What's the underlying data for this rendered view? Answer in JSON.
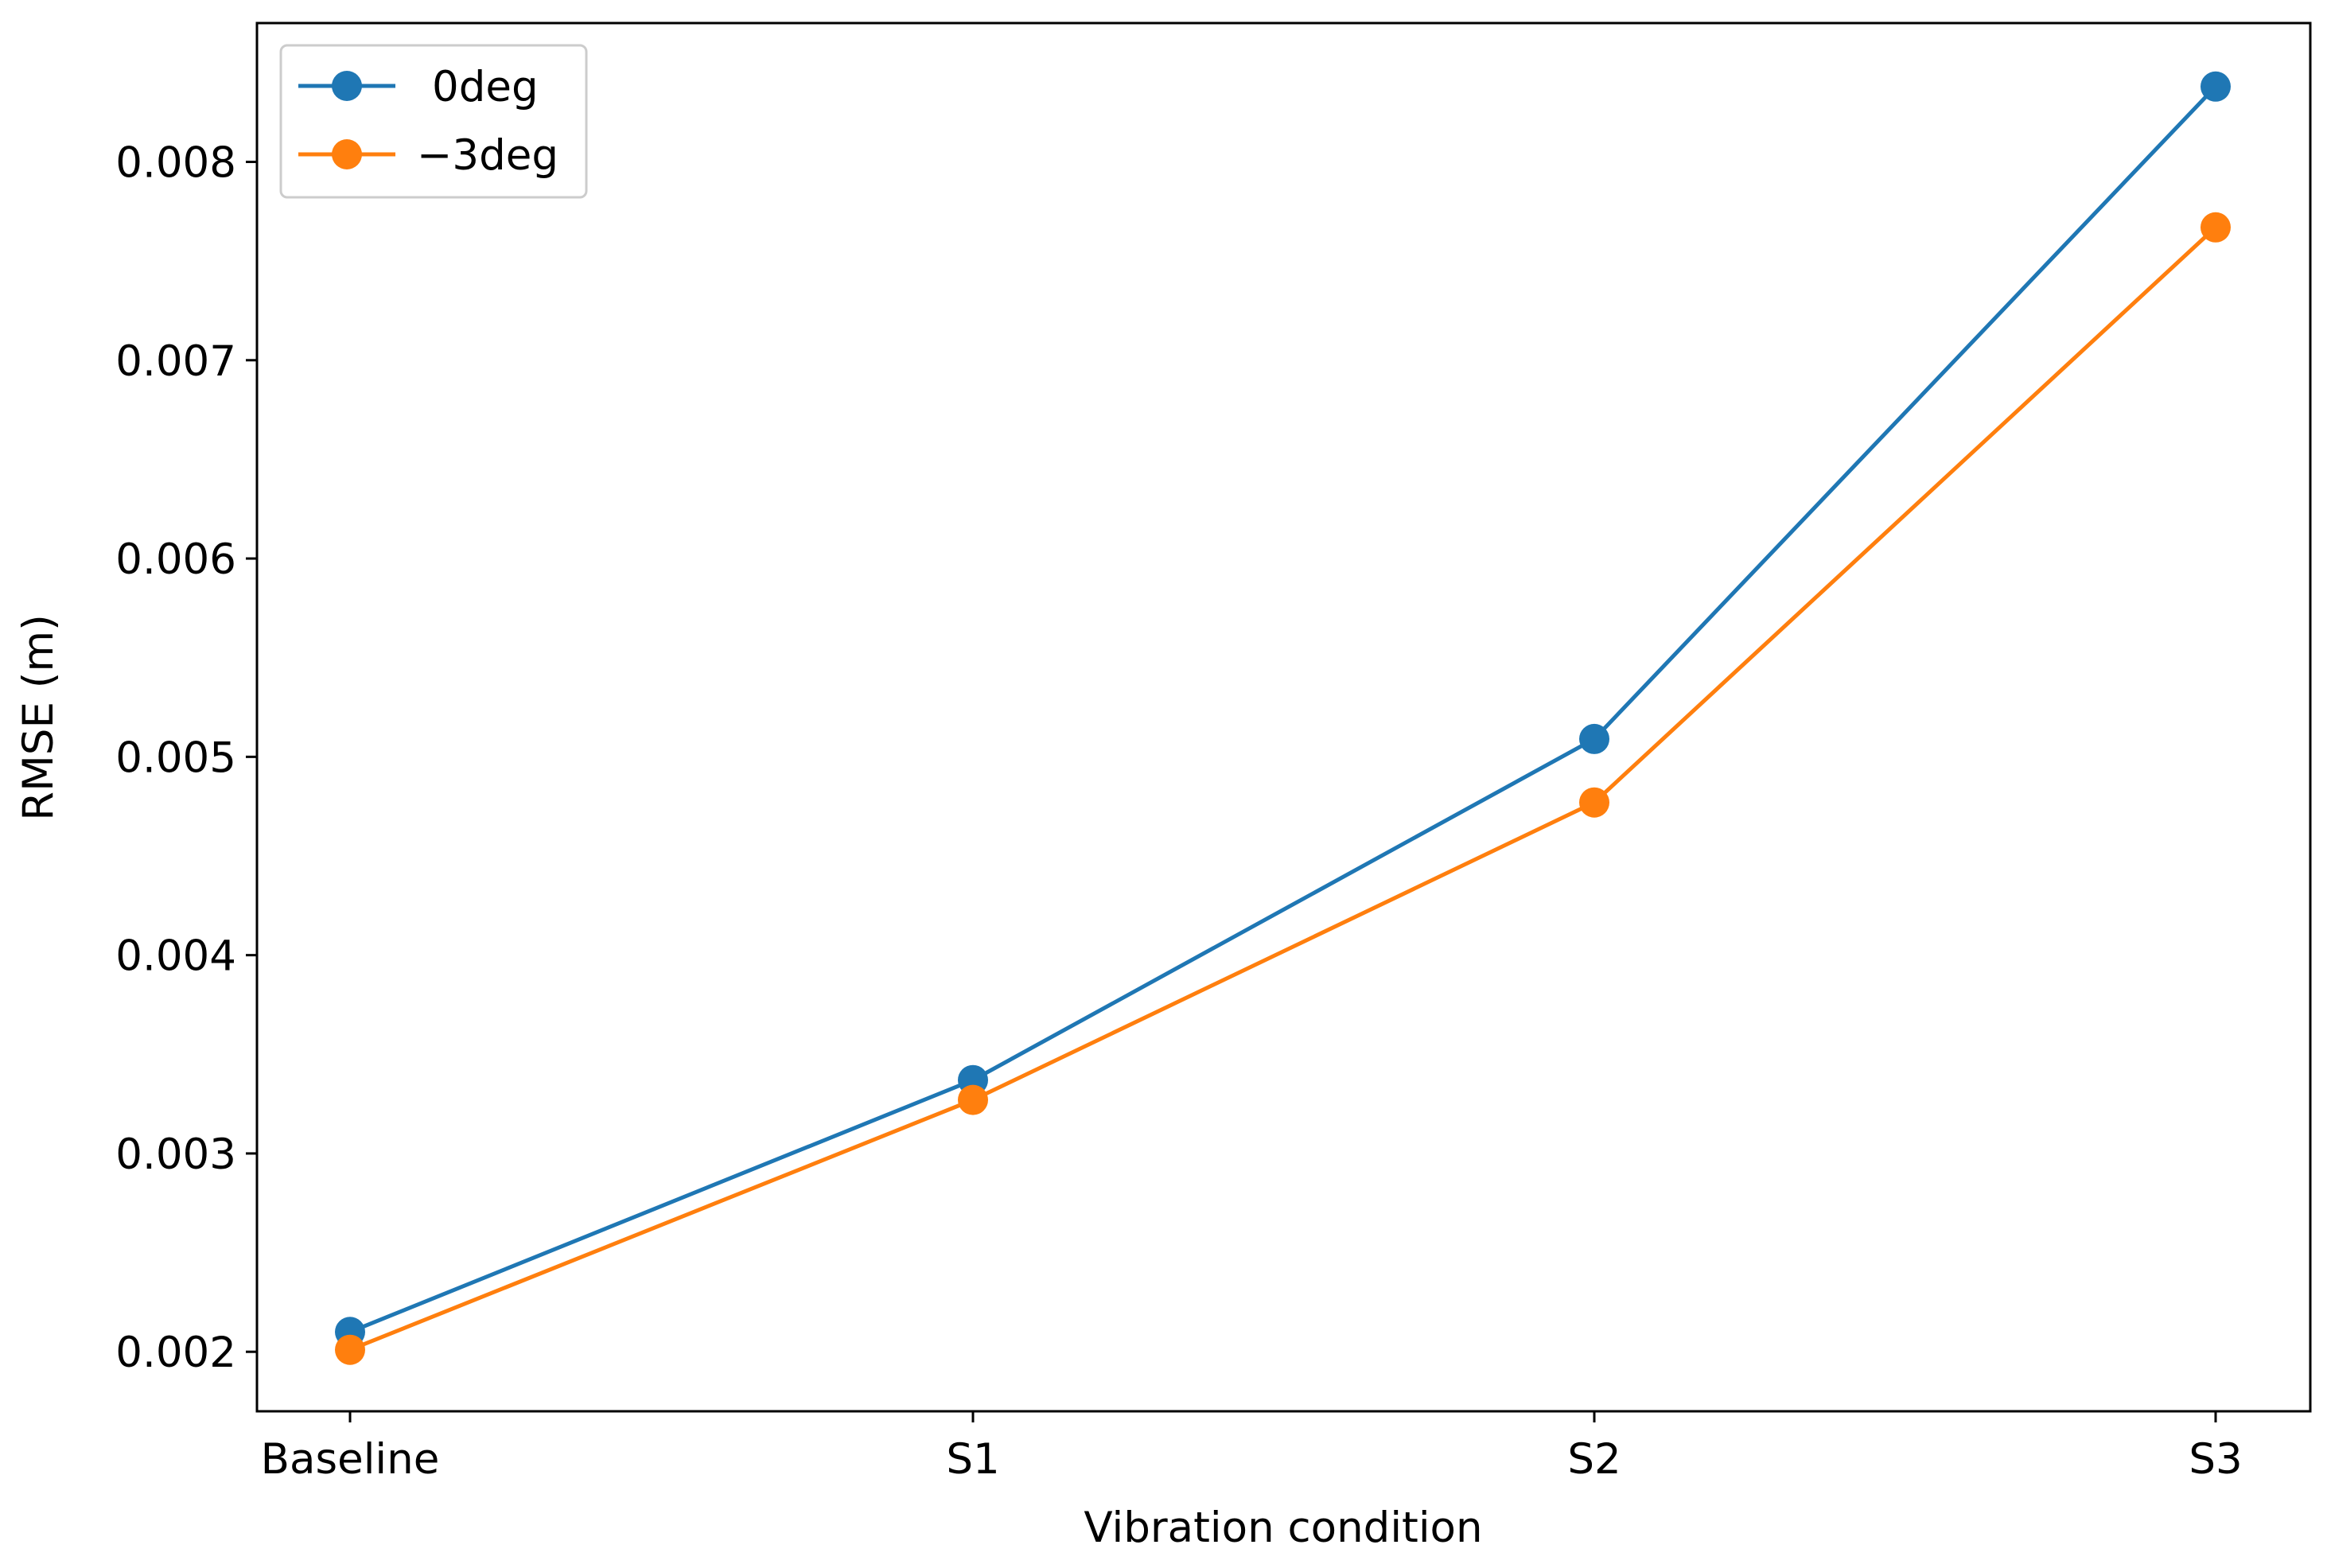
{
  "chart_data": {
    "type": "line",
    "categories": [
      "Baseline",
      "S1",
      "S2",
      "S3"
    ],
    "series": [
      {
        "name": "0deg",
        "color": "#1f77b4",
        "values": [
          0.0021,
          0.00337,
          0.00509,
          0.00838
        ]
      },
      {
        "name": "−3deg",
        "color": "#ff7f0e",
        "values": [
          0.00201,
          0.00327,
          0.00477,
          0.00767
        ]
      }
    ],
    "title": "",
    "xlabel": "Vibration condition",
    "ylabel": "RMSE (m)",
    "ylim": [
      0.0017,
      0.0087
    ],
    "yticks": [
      "0.002",
      "0.003",
      "0.004",
      "0.005",
      "0.006",
      "0.007",
      "0.008"
    ],
    "grid": false,
    "legend_position": "top-left",
    "marker": "circle"
  }
}
